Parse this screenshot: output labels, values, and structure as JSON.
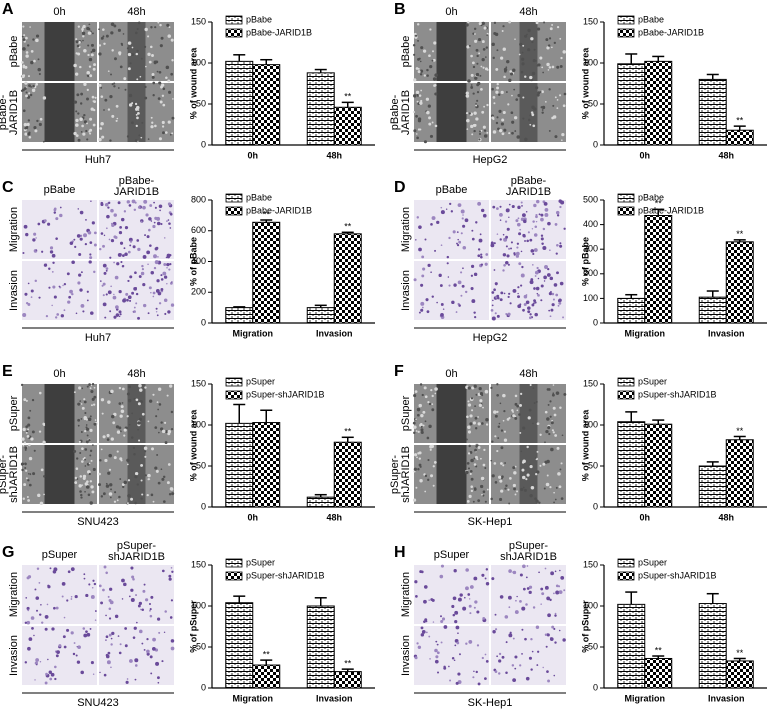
{
  "panels": [
    {
      "letter": "A",
      "columns": [
        [
          "0h"
        ],
        [
          "48h"
        ]
      ],
      "rows": [
        [
          "pBabe"
        ],
        [
          "pBabe-",
          "JARID1B"
        ]
      ],
      "cell_line": "Huh7"
    },
    {
      "letter": "B",
      "columns": [
        [
          "0h"
        ],
        [
          "48h"
        ]
      ],
      "rows": [
        [
          "pBabe"
        ],
        [
          "pBabe-",
          "JARID1B"
        ]
      ],
      "cell_line": "HepG2"
    },
    {
      "letter": "C",
      "columns": [
        [
          "pBabe"
        ],
        [
          "pBabe-",
          "JARID1B"
        ]
      ],
      "rows": [
        [
          "Migration"
        ],
        [
          "Invasion"
        ]
      ],
      "cell_line": "Huh7"
    },
    {
      "letter": "D",
      "columns": [
        [
          "pBabe"
        ],
        [
          "pBabe-",
          "JARID1B"
        ]
      ],
      "rows": [
        [
          "Migration"
        ],
        [
          "Invasion"
        ]
      ],
      "cell_line": "HepG2"
    },
    {
      "letter": "E",
      "columns": [
        [
          "0h"
        ],
        [
          "48h"
        ]
      ],
      "rows": [
        [
          "pSuper"
        ],
        [
          "pSuper-",
          "shJARID1B"
        ]
      ],
      "cell_line": "SNU423"
    },
    {
      "letter": "F",
      "columns": [
        [
          "0h"
        ],
        [
          "48h"
        ]
      ],
      "rows": [
        [
          "pSuper"
        ],
        [
          "pSuper-",
          "shJARID1B"
        ]
      ],
      "cell_line": "SK-Hep1"
    },
    {
      "letter": "G",
      "columns": [
        [
          "pSuper"
        ],
        [
          "pSuper-",
          "shJARID1B"
        ]
      ],
      "rows": [
        [
          "Migration"
        ],
        [
          "Invasion"
        ]
      ],
      "cell_line": "SNU423"
    },
    {
      "letter": "H",
      "columns": [
        [
          "pSuper"
        ],
        [
          "pSuper-",
          "shJARID1B"
        ]
      ],
      "rows": [
        [
          "Migration"
        ],
        [
          "Invasion"
        ]
      ],
      "cell_line": "SK-Hep1"
    }
  ],
  "chart_data": [
    {
      "type": "bar",
      "y_label": "% of wound area",
      "categories": [
        "0h",
        "48h"
      ],
      "ylim": [
        0,
        150
      ],
      "yticks": [
        0,
        50,
        100,
        150
      ],
      "series": [
        {
          "name": "pBabe",
          "pattern": "brick",
          "color": "#000000",
          "values": [
            102,
            88
          ],
          "errors": [
            8,
            4
          ],
          "significance": [
            null,
            null
          ]
        },
        {
          "name": "pBabe-JARID1B",
          "pattern": "checker",
          "color": "#000000",
          "values": [
            98,
            46
          ],
          "errors": [
            6,
            6
          ],
          "significance": [
            null,
            "**"
          ]
        }
      ]
    },
    {
      "type": "bar",
      "y_label": "% of wound area",
      "categories": [
        "0h",
        "48h"
      ],
      "ylim": [
        0,
        150
      ],
      "yticks": [
        0,
        50,
        100,
        150
      ],
      "series": [
        {
          "name": "pBabe",
          "pattern": "brick",
          "color": "#000000",
          "values": [
            99,
            80
          ],
          "errors": [
            12,
            6
          ],
          "significance": [
            null,
            null
          ]
        },
        {
          "name": "pBabe-JARID1B",
          "pattern": "checker",
          "color": "#000000",
          "values": [
            102,
            18
          ],
          "errors": [
            6,
            5
          ],
          "significance": [
            null,
            "**"
          ]
        }
      ]
    },
    {
      "type": "bar",
      "y_label": "% of pBabe",
      "categories": [
        "Migration",
        "Invasion"
      ],
      "ylim": [
        0,
        800
      ],
      "yticks": [
        0,
        200,
        400,
        600,
        800
      ],
      "series": [
        {
          "name": "pBabe",
          "pattern": "brick",
          "color": "#000000",
          "values": [
            100,
            100
          ],
          "errors": [
            5,
            15
          ],
          "significance": [
            null,
            null
          ]
        },
        {
          "name": "pBabe-JARID1B",
          "pattern": "checker",
          "color": "#000000",
          "values": [
            655,
            580
          ],
          "errors": [
            15,
            10
          ],
          "significance": [
            "**",
            "**"
          ]
        }
      ]
    },
    {
      "type": "bar",
      "y_label": "% of pBabe",
      "categories": [
        "Migration",
        "Invasion"
      ],
      "ylim": [
        0,
        500
      ],
      "yticks": [
        0,
        100,
        200,
        300,
        400,
        500
      ],
      "series": [
        {
          "name": "pBabe",
          "pattern": "brick",
          "color": "#000000",
          "values": [
            100,
            105
          ],
          "errors": [
            15,
            25
          ],
          "significance": [
            null,
            null
          ]
        },
        {
          "name": "pBabe-JARID1B",
          "pattern": "checker",
          "color": "#000000",
          "values": [
            437,
            330
          ],
          "errors": [
            25,
            8
          ],
          "significance": [
            "**",
            "**"
          ]
        }
      ]
    },
    {
      "type": "bar",
      "y_label": "% of wound area",
      "categories": [
        "0h",
        "48h"
      ],
      "ylim": [
        0,
        150
      ],
      "yticks": [
        0,
        50,
        100,
        150
      ],
      "series": [
        {
          "name": "pSuper",
          "pattern": "brick",
          "color": "#000000",
          "values": [
            102,
            12
          ],
          "errors": [
            23,
            3
          ],
          "significance": [
            null,
            null
          ]
        },
        {
          "name": "pSuper-shJARID1B",
          "pattern": "checker",
          "color": "#000000",
          "values": [
            103,
            79
          ],
          "errors": [
            15,
            6
          ],
          "significance": [
            null,
            "**"
          ]
        }
      ]
    },
    {
      "type": "bar",
      "y_label": "% of wound area",
      "categories": [
        "0h",
        "48h"
      ],
      "ylim": [
        0,
        150
      ],
      "yticks": [
        0,
        50,
        100,
        150
      ],
      "series": [
        {
          "name": "pSuper",
          "pattern": "brick",
          "color": "#000000",
          "values": [
            104,
            50
          ],
          "errors": [
            12,
            5
          ],
          "significance": [
            null,
            null
          ]
        },
        {
          "name": "pSuper-shJARID1B",
          "pattern": "checker",
          "color": "#000000",
          "values": [
            101,
            82
          ],
          "errors": [
            5,
            4
          ],
          "significance": [
            null,
            "**"
          ]
        }
      ]
    },
    {
      "type": "bar",
      "y_label": "% of pSuper",
      "categories": [
        "Migration",
        "Invasion"
      ],
      "ylim": [
        0,
        150
      ],
      "yticks": [
        0,
        50,
        100,
        150
      ],
      "series": [
        {
          "name": "pSuper",
          "pattern": "brick",
          "color": "#000000",
          "values": [
            104,
            100
          ],
          "errors": [
            8,
            10
          ],
          "significance": [
            null,
            null
          ]
        },
        {
          "name": "pSuper-shJARID1B",
          "pattern": "checker",
          "color": "#000000",
          "values": [
            28,
            20
          ],
          "errors": [
            6,
            3
          ],
          "significance": [
            "**",
            "**"
          ]
        }
      ]
    },
    {
      "type": "bar",
      "y_label": "% of pSuper",
      "categories": [
        "Migration",
        "Invasion"
      ],
      "ylim": [
        0,
        150
      ],
      "yticks": [
        0,
        50,
        100,
        150
      ],
      "series": [
        {
          "name": "pSuper",
          "pattern": "brick",
          "color": "#000000",
          "values": [
            102,
            103
          ],
          "errors": [
            15,
            12
          ],
          "significance": [
            null,
            null
          ]
        },
        {
          "name": "pSuper-shJARID1B",
          "pattern": "checker",
          "color": "#000000",
          "values": [
            36,
            33
          ],
          "errors": [
            3,
            3
          ],
          "significance": [
            "**",
            "**"
          ]
        }
      ]
    }
  ]
}
